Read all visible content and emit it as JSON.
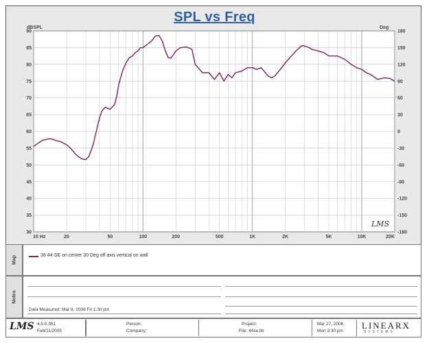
{
  "chart_data": {
    "type": "line",
    "title": "SPL vs Freq",
    "xlabel": "",
    "ylabel_left": "dBSPL",
    "ylabel_right": "Deg",
    "x_scale": "log",
    "xlim": [
      10,
      20000
    ],
    "ylim": [
      30,
      90
    ],
    "ylim_right": [
      -180,
      180
    ],
    "grid": true,
    "x_tick_labels": [
      {
        "value": 10,
        "label": "10 Hz"
      },
      {
        "value": 20,
        "label": "20"
      },
      {
        "value": 50,
        "label": "50"
      },
      {
        "value": 100,
        "label": "100"
      },
      {
        "value": 200,
        "label": "200"
      },
      {
        "value": 500,
        "label": "500"
      },
      {
        "value": 1000,
        "label": "1K"
      },
      {
        "value": 2000,
        "label": "2K"
      },
      {
        "value": 5000,
        "label": "5K"
      },
      {
        "value": 10000,
        "label": "10K"
      },
      {
        "value": 20000,
        "label": "20K"
      }
    ],
    "y_ticks_left": [
      30,
      35,
      40,
      45,
      50,
      55,
      60,
      65,
      70,
      75,
      80,
      85,
      90
    ],
    "y_ticks_right": [
      -180,
      -150,
      -120,
      -90,
      -60,
      -30,
      0,
      30,
      60,
      90,
      120,
      150,
      180
    ],
    "series": [
      {
        "name": "38 44-SE on center 30 Deg off axis vertical on wall",
        "color": "#7a1f5c",
        "x": [
          10,
          11,
          12,
          13,
          14,
          15,
          16,
          18,
          20,
          22,
          24,
          26,
          28,
          30,
          32,
          35,
          38,
          40,
          42,
          45,
          48,
          50,
          55,
          58,
          60,
          65,
          70,
          75,
          80,
          85,
          90,
          95,
          100,
          110,
          120,
          130,
          140,
          150,
          160,
          170,
          180,
          200,
          220,
          250,
          280,
          300,
          350,
          400,
          450,
          500,
          550,
          600,
          650,
          700,
          800,
          900,
          1000,
          1100,
          1200,
          1400,
          1500,
          1600,
          1800,
          2000,
          2200,
          2500,
          2800,
          3000,
          3300,
          3500,
          4000,
          4500,
          5000,
          5500,
          6000,
          7000,
          8000,
          9000,
          10000,
          11000,
          12000,
          14000,
          16000,
          18000,
          20000
        ],
        "y": [
          55.5,
          56.5,
          57.3,
          57.6,
          57.8,
          57.6,
          57.3,
          56.8,
          56.0,
          54.8,
          53.3,
          52.3,
          51.7,
          51.6,
          52.5,
          56.0,
          61.0,
          64.0,
          66.0,
          67.2,
          66.8,
          66.6,
          68.0,
          71.0,
          74.0,
          78.0,
          80.5,
          82.0,
          82.5,
          83.5,
          84.0,
          85.0,
          85.0,
          86.0,
          87.0,
          88.5,
          88.6,
          87.0,
          84.0,
          82.0,
          81.8,
          84.0,
          85.0,
          85.2,
          84.5,
          80.0,
          77.5,
          77.5,
          75.5,
          77.5,
          75.0,
          77.0,
          76.0,
          77.5,
          78.0,
          79.0,
          79.0,
          78.5,
          79.0,
          76.5,
          76.0,
          76.5,
          78.5,
          80.5,
          82.0,
          84.0,
          85.5,
          85.5,
          85.0,
          84.5,
          84.0,
          83.5,
          82.5,
          82.5,
          82.5,
          81.5,
          80.0,
          79.0,
          78.5,
          77.5,
          77.0,
          75.5,
          76.0,
          75.8,
          75.0
        ]
      }
    ]
  },
  "lms_mark": "LMS",
  "side_tabs": {
    "map": "Map",
    "notes": "Notes"
  },
  "legend_text": "38 44-SE on center 30 Deg off axis vertical on wall",
  "data_measured": "Data Measured: Mar 9, 2006  Fri  1:30 pm",
  "footer": {
    "logo": "LMS",
    "version": "4.5.0.351",
    "version_date": "Feb/11/2005",
    "person": "Person:",
    "company": "Company:",
    "project": "Project:",
    "file": "File: 44se.lib",
    "date": "Mar 27, 2006",
    "time": "Mon  3:30 pm",
    "brand": "LINEARX",
    "brand_sub": "SYSTEMS"
  }
}
